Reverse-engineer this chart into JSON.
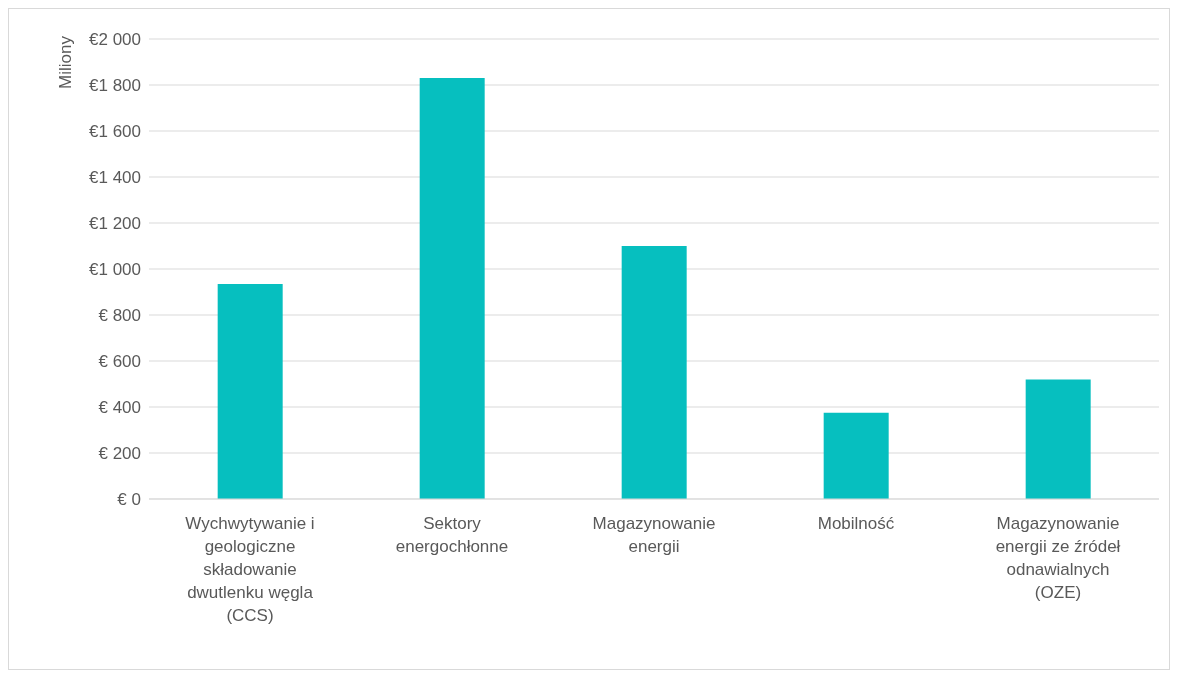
{
  "chart_data": {
    "type": "bar",
    "ylabel": "Miliony",
    "categories": [
      "Wychwytywanie i geologiczne składowanie dwutlenku węgla (CCS)",
      "Sektory energochłonne",
      "Magazynowanie energii",
      "Mobilność",
      "Magazynowanie energii ze źródeł odnawialnych (OZE)"
    ],
    "values": [
      935,
      1830,
      1100,
      375,
      520
    ],
    "color": "#06bfbf",
    "ylim": [
      0,
      2000
    ],
    "yticks": [
      {
        "value": 0,
        "label": "€ 0"
      },
      {
        "value": 200,
        "label": "€ 200"
      },
      {
        "value": 400,
        "label": "€ 400"
      },
      {
        "value": 600,
        "label": "€ 600"
      },
      {
        "value": 800,
        "label": "€ 800"
      },
      {
        "value": 1000,
        "label": "€1 000"
      },
      {
        "value": 1200,
        "label": "€1 200"
      },
      {
        "value": 1400,
        "label": "€1 400"
      },
      {
        "value": 1600,
        "label": "€1 600"
      },
      {
        "value": 1800,
        "label": "€1 800"
      },
      {
        "value": 2000,
        "label": "€2 000"
      }
    ],
    "grid": "y"
  }
}
